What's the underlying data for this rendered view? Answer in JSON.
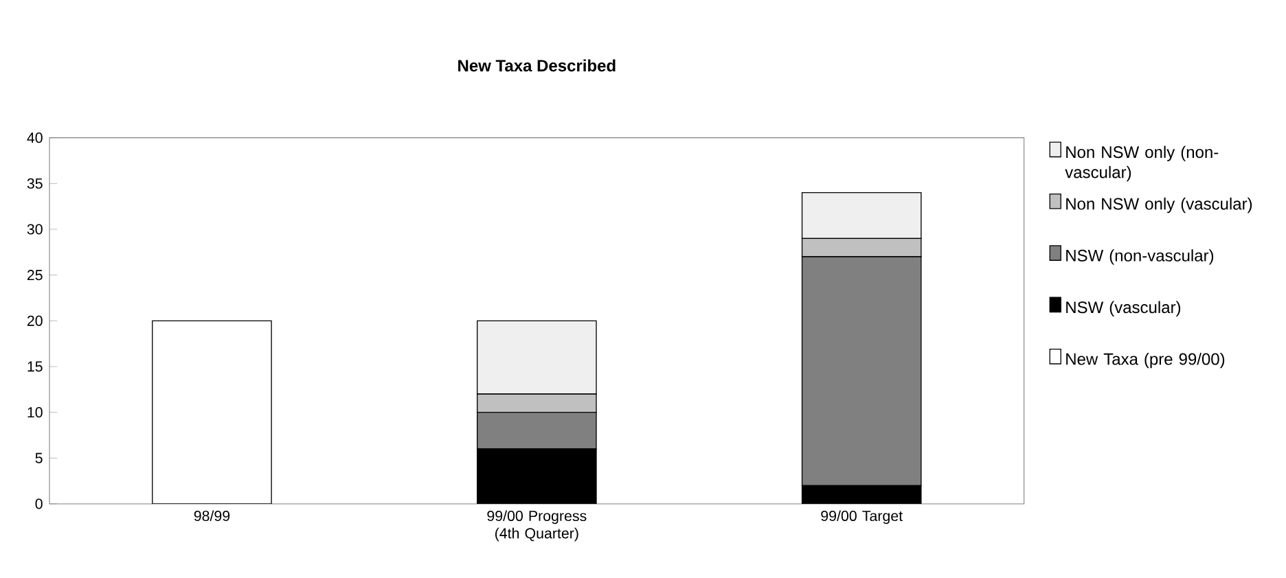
{
  "chart_data": {
    "type": "bar",
    "title": "New Taxa Described",
    "stacked": true,
    "categories": [
      "98/99",
      "99/00 Progress (4th Quarter)",
      "99/00 Target"
    ],
    "series": [
      {
        "name": "New Taxa (pre 99/00)",
        "color": "#ffffff",
        "values": [
          20,
          0,
          0
        ]
      },
      {
        "name": "NSW (vascular)",
        "color": "#000000",
        "values": [
          0,
          6,
          2
        ]
      },
      {
        "name": "NSW (non-vascular)",
        "color": "#808080",
        "values": [
          0,
          4,
          25
        ]
      },
      {
        "name": "Non NSW only (vascular)",
        "color": "#c0c0c0",
        "values": [
          0,
          2,
          2
        ]
      },
      {
        "name": "Non NSW only (non-vascular)",
        "color": "#efefef",
        "values": [
          0,
          8,
          5
        ]
      }
    ],
    "ylim": [
      0,
      40
    ],
    "yticks": [
      0,
      5,
      10,
      15,
      20,
      25,
      30,
      35,
      40
    ],
    "grid": false,
    "legend": "right"
  }
}
